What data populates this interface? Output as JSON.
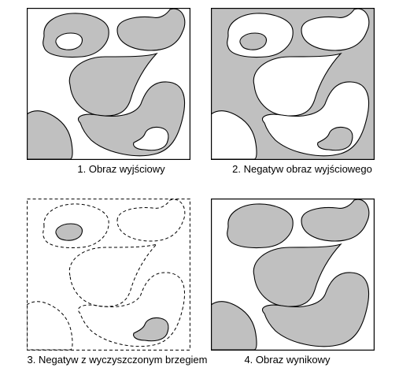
{
  "colors": {
    "fill_gray": "#c0c0c0",
    "fill_white": "#ffffff",
    "stroke": "#000000"
  },
  "panels": [
    {
      "caption": "1. Obraz wyjściowy"
    },
    {
      "caption": "2. Negatyw obraz wyjściowego"
    },
    {
      "caption": "3. Negatyw z wyczyszczonym brzegiem"
    },
    {
      "caption": "4. Obraz wynikowy"
    }
  ]
}
